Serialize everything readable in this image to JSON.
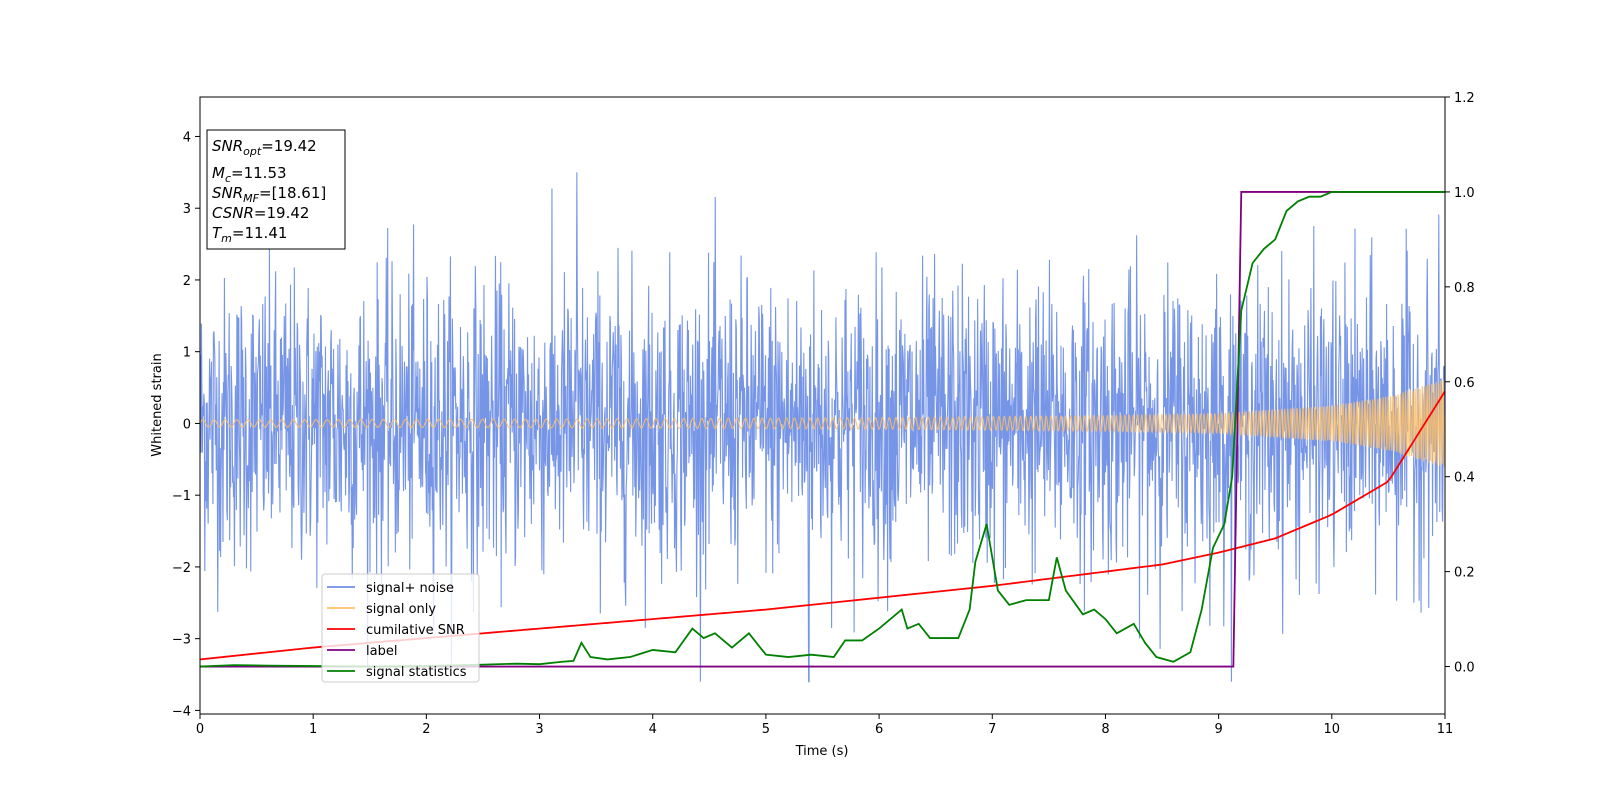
{
  "chart_data": {
    "type": "line",
    "xlabel": "Time (s)",
    "ylabel": "Whitened strain",
    "xlim": [
      0,
      11
    ],
    "ylim": [
      -4.05,
      4.55
    ],
    "y2lim": [
      -0.1,
      1.2
    ],
    "xticks": [
      "0",
      "1",
      "2",
      "3",
      "4",
      "5",
      "6",
      "7",
      "8",
      "9",
      "10",
      "11"
    ],
    "yticks": [
      "−4",
      "−3",
      "−2",
      "−1",
      "0",
      "1",
      "2",
      "3",
      "4"
    ],
    "y2ticks": [
      "0.0",
      "0.2",
      "0.4",
      "0.6",
      "0.8",
      "1.0",
      "1.2"
    ],
    "legend_position": "lower-left",
    "legend": [
      {
        "label": "signal+ noise",
        "color": "#6f8fe6"
      },
      {
        "label": "signal only",
        "color": "#ffbf66"
      },
      {
        "label": "cumilative SNR",
        "color": "#ff0000"
      },
      {
        "label": "label",
        "color": "#800080"
      },
      {
        "label": "signal statistics",
        "color": "#008000"
      }
    ],
    "annotation": {
      "snr_opt": {
        "main": "SNR",
        "sub": "opt",
        "value": "=19.42"
      },
      "mc": {
        "main": "M",
        "sub": "c",
        "value": "=11.53"
      },
      "snr_mf": {
        "main": "SNR",
        "sub": "MF",
        "value": "=[18.61]"
      },
      "csnr": {
        "main": "CSNR",
        "value": "=19.42"
      },
      "tm": {
        "main": "T",
        "sub": "m",
        "value": "=11.41"
      }
    },
    "series": [
      {
        "name": "signal+ noise",
        "axis": "left",
        "color": "#6f8fe6",
        "description_sample": "dense Gaussian noise, std approx 1, spikes to 3.85 near t=3.33 and -3.65 near t=5.38",
        "noise_std": 1.0
      },
      {
        "name": "signal only",
        "axis": "left",
        "color": "#ffbf66",
        "envelope": {
          "x": [
            0,
            3,
            6,
            8,
            9,
            10,
            10.5,
            11
          ],
          "amp": [
            0.05,
            0.06,
            0.08,
            0.11,
            0.14,
            0.25,
            0.38,
            0.62
          ]
        }
      },
      {
        "name": "cumilative SNR",
        "axis": "right",
        "x": [
          0,
          1,
          2,
          3,
          4,
          5,
          6,
          7,
          8,
          8.5,
          9,
          9.5,
          10,
          10.5,
          11
        ],
        "y": [
          0.015,
          0.04,
          0.06,
          0.08,
          0.1,
          0.12,
          0.145,
          0.17,
          0.2,
          0.215,
          0.24,
          0.27,
          0.32,
          0.39,
          0.58
        ],
        "color": "#ff0000"
      },
      {
        "name": "label",
        "axis": "right",
        "x": [
          0,
          9.13,
          9.2,
          11
        ],
        "y": [
          0,
          0,
          1,
          1
        ],
        "color": "#800080"
      },
      {
        "name": "signal statistics",
        "axis": "right",
        "color": "#008000",
        "x": [
          0,
          0.3,
          0.6,
          1,
          1.5,
          2,
          2.5,
          2.8,
          3.0,
          3.2,
          3.3,
          3.37,
          3.45,
          3.6,
          3.8,
          4.0,
          4.2,
          4.35,
          4.45,
          4.55,
          4.7,
          4.85,
          5.0,
          5.2,
          5.4,
          5.6,
          5.7,
          5.85,
          6.0,
          6.1,
          6.2,
          6.25,
          6.35,
          6.45,
          6.55,
          6.7,
          6.8,
          6.85,
          6.95,
          7.05,
          7.15,
          7.3,
          7.5,
          7.57,
          7.65,
          7.8,
          7.9,
          8.0,
          8.1,
          8.25,
          8.35,
          8.45,
          8.6,
          8.75,
          8.85,
          8.95,
          9.05,
          9.12,
          9.2,
          9.3,
          9.4,
          9.5,
          9.6,
          9.7,
          9.8,
          9.9,
          10.0,
          10.2,
          10.5,
          10.8,
          11.0
        ],
        "y": [
          0.0,
          0.003,
          0.002,
          0.001,
          0.0,
          0.001,
          0.004,
          0.006,
          0.005,
          0.01,
          0.012,
          0.05,
          0.02,
          0.015,
          0.02,
          0.035,
          0.03,
          0.08,
          0.06,
          0.07,
          0.04,
          0.07,
          0.025,
          0.02,
          0.025,
          0.02,
          0.055,
          0.055,
          0.08,
          0.1,
          0.12,
          0.08,
          0.09,
          0.06,
          0.06,
          0.06,
          0.12,
          0.22,
          0.3,
          0.16,
          0.13,
          0.14,
          0.14,
          0.23,
          0.16,
          0.11,
          0.12,
          0.1,
          0.07,
          0.09,
          0.05,
          0.02,
          0.01,
          0.03,
          0.12,
          0.25,
          0.3,
          0.4,
          0.75,
          0.85,
          0.88,
          0.9,
          0.96,
          0.98,
          0.99,
          0.99,
          1.0,
          1.0,
          1.0,
          1.0,
          1.0
        ]
      }
    ]
  }
}
